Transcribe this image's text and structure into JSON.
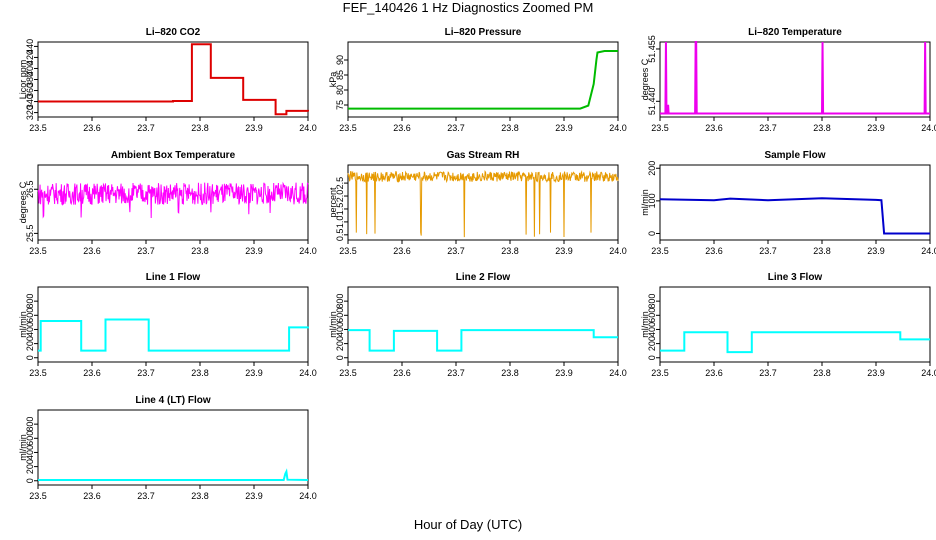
{
  "page": {
    "title": "FEF_140426  1 Hz Diagnostics Zoomed PM",
    "xlabel": "Hour of Day (UTC)"
  },
  "colors": {
    "co2": "#dd0000",
    "pressure": "#00bb00",
    "temperature": "#ee00ee",
    "ambient": "#ff00ff",
    "rh": "#e69a00",
    "sample_flow": "#0000cc",
    "line_flow": "#00ffff",
    "axis": "#000000"
  },
  "chart_data": [
    {
      "type": "line",
      "title": "Li–820 CO2",
      "ylabel": "Licor ppm",
      "xlim": [
        23.5,
        24.0
      ],
      "ylim": [
        312,
        448
      ],
      "xticks": [
        "23.5",
        "23.6",
        "23.7",
        "23.8",
        "23.9",
        "24.0"
      ],
      "yticks": [
        "320",
        "340",
        "360",
        "380",
        "400",
        "420",
        "440"
      ],
      "series": [
        {
          "color": "co2",
          "mode": "step",
          "x": [
            23.5,
            23.75,
            23.785,
            23.82,
            23.88,
            23.94,
            23.96,
            24.0
          ],
          "y": [
            340,
            341,
            444,
            383,
            343,
            317,
            323,
            322
          ]
        }
      ]
    },
    {
      "type": "line",
      "title": "Li–820 Pressure",
      "ylabel": "kPa",
      "xlim": [
        23.5,
        24.0
      ],
      "ylim": [
        71,
        96
      ],
      "xticks": [
        "23.5",
        "23.6",
        "23.7",
        "23.8",
        "23.9",
        "24.0"
      ],
      "yticks": [
        "75",
        "80",
        "85",
        "90"
      ],
      "series": [
        {
          "color": "pressure",
          "mode": "line",
          "x": [
            23.5,
            23.92,
            23.93,
            23.945,
            23.955,
            23.96,
            23.962,
            23.975,
            24.0
          ],
          "y": [
            73.8,
            73.8,
            73.8,
            74.8,
            82,
            90,
            92.5,
            93,
            93
          ]
        }
      ]
    },
    {
      "type": "line",
      "title": "Li–820 Temperature",
      "ylabel": "degrees C",
      "xlim": [
        23.5,
        24.0
      ],
      "ylim": [
        51.4355,
        51.457
      ],
      "xticks": [
        "23.5",
        "23.6",
        "23.7",
        "23.8",
        "23.9",
        "24.0"
      ],
      "yticks": [
        "51.440",
        "51.455"
      ],
      "series": [
        {
          "color": "temperature",
          "mode": "line",
          "x": [
            23.5,
            23.51,
            23.511,
            23.512,
            23.513,
            23.515,
            23.516,
            23.517,
            23.519,
            23.565,
            23.566,
            23.567,
            23.568,
            23.8,
            23.801,
            23.802,
            23.99,
            23.991,
            23.992,
            24.0
          ],
          "y": [
            51.4365,
            51.4365,
            51.457,
            51.4365,
            51.4365,
            51.439,
            51.4365,
            51.4365,
            51.4365,
            51.4365,
            51.457,
            51.457,
            51.4365,
            51.4365,
            51.457,
            51.4365,
            51.4365,
            51.457,
            51.4365,
            51.4365
          ]
        }
      ]
    },
    {
      "type": "line",
      "title": "Ambient Box Temperature",
      "ylabel": "degrees C",
      "xlim": [
        23.5,
        24.0
      ],
      "ylim": [
        25.35,
        27.05
      ],
      "xticks": [
        "23.5",
        "23.6",
        "23.7",
        "23.8",
        "23.9",
        "24.0"
      ],
      "yticks": [
        "25.5",
        "26.5"
      ],
      "series": [
        {
          "color": "ambient",
          "mode": "noise",
          "base": 26.4,
          "amp": 0.25,
          "dips_x": [
            23.51,
            23.58,
            23.67,
            23.71,
            23.76,
            23.82,
            23.89,
            23.93
          ],
          "dips_y": 25.8
        }
      ]
    },
    {
      "type": "line",
      "title": "Gas Stream RH",
      "ylabel": "percent",
      "xlim": [
        23.5,
        24.0
      ],
      "ylim": [
        0.3,
        3.2
      ],
      "xticks": [
        "23.5",
        "23.6",
        "23.7",
        "23.8",
        "23.9",
        "24.0"
      ],
      "yticks": [
        "0.5",
        "1.0",
        "1.5",
        "2.0",
        "2.5"
      ],
      "series": [
        {
          "color": "rh",
          "mode": "noise",
          "base": 2.75,
          "amp": 0.2,
          "dips_x": [
            23.515,
            23.535,
            23.55,
            23.635,
            23.715,
            23.83,
            23.845,
            23.855,
            23.875,
            23.9,
            23.95
          ],
          "dips_y": 0.4
        }
      ]
    },
    {
      "type": "line",
      "title": "Sample Flow",
      "ylabel": "ml/min",
      "xlim": [
        23.5,
        24.0
      ],
      "ylim": [
        -20,
        210
      ],
      "xticks": [
        "23.5",
        "23.6",
        "23.7",
        "23.8",
        "23.9",
        "24.0"
      ],
      "yticks": [
        "0",
        "100",
        "200"
      ],
      "series": [
        {
          "color": "sample_flow",
          "mode": "line",
          "x": [
            23.5,
            23.6,
            23.63,
            23.7,
            23.8,
            23.9,
            23.91,
            23.915,
            24.0
          ],
          "y": [
            105,
            102,
            107,
            102,
            108,
            103,
            102,
            0,
            0
          ]
        }
      ]
    },
    {
      "type": "line",
      "title": "Line 1 Flow",
      "ylabel": "ml/min",
      "xlim": [
        23.5,
        24.0
      ],
      "ylim": [
        -60,
        1000
      ],
      "xticks": [
        "23.5",
        "23.6",
        "23.7",
        "23.8",
        "23.9",
        "24.0"
      ],
      "yticks": [
        "0",
        "200",
        "400",
        "600",
        "800"
      ],
      "series": [
        {
          "color": "line_flow",
          "mode": "step",
          "x": [
            23.5,
            23.505,
            23.58,
            23.625,
            23.705,
            23.96,
            23.965,
            24.0
          ],
          "y": [
            100,
            520,
            100,
            540,
            100,
            100,
            430,
            440
          ]
        }
      ]
    },
    {
      "type": "line",
      "title": "Line 2 Flow",
      "ylabel": "ml/min",
      "xlim": [
        23.5,
        24.0
      ],
      "ylim": [
        -60,
        1000
      ],
      "xticks": [
        "23.5",
        "23.6",
        "23.7",
        "23.8",
        "23.9",
        "24.0"
      ],
      "yticks": [
        "0",
        "200",
        "400",
        "600",
        "800"
      ],
      "series": [
        {
          "color": "line_flow",
          "mode": "step",
          "x": [
            23.5,
            23.54,
            23.585,
            23.665,
            23.71,
            23.955,
            24.0
          ],
          "y": [
            390,
            100,
            380,
            100,
            390,
            290,
            290
          ]
        }
      ]
    },
    {
      "type": "line",
      "title": "Line 3 Flow",
      "ylabel": "ml/min",
      "xlim": [
        23.5,
        24.0
      ],
      "ylim": [
        -60,
        1000
      ],
      "xticks": [
        "23.5",
        "23.6",
        "23.7",
        "23.8",
        "23.9",
        "24.0"
      ],
      "yticks": [
        "0",
        "200",
        "400",
        "600",
        "800"
      ],
      "series": [
        {
          "color": "line_flow",
          "mode": "step",
          "x": [
            23.5,
            23.502,
            23.545,
            23.625,
            23.67,
            23.945,
            24.0
          ],
          "y": [
            100,
            100,
            360,
            80,
            360,
            260,
            260
          ]
        }
      ]
    },
    {
      "type": "line",
      "title": "Line 4 (LT) Flow",
      "ylabel": "ml/min",
      "xlim": [
        23.5,
        24.0
      ],
      "ylim": [
        -60,
        1000
      ],
      "xticks": [
        "23.5",
        "23.6",
        "23.7",
        "23.8",
        "23.9",
        "24.0"
      ],
      "yticks": [
        "0",
        "200",
        "400",
        "600",
        "800"
      ],
      "series": [
        {
          "color": "line_flow",
          "mode": "line",
          "x": [
            23.5,
            23.955,
            23.958,
            23.96,
            23.962,
            24.0
          ],
          "y": [
            10,
            10,
            100,
            130,
            15,
            10
          ]
        }
      ]
    }
  ]
}
